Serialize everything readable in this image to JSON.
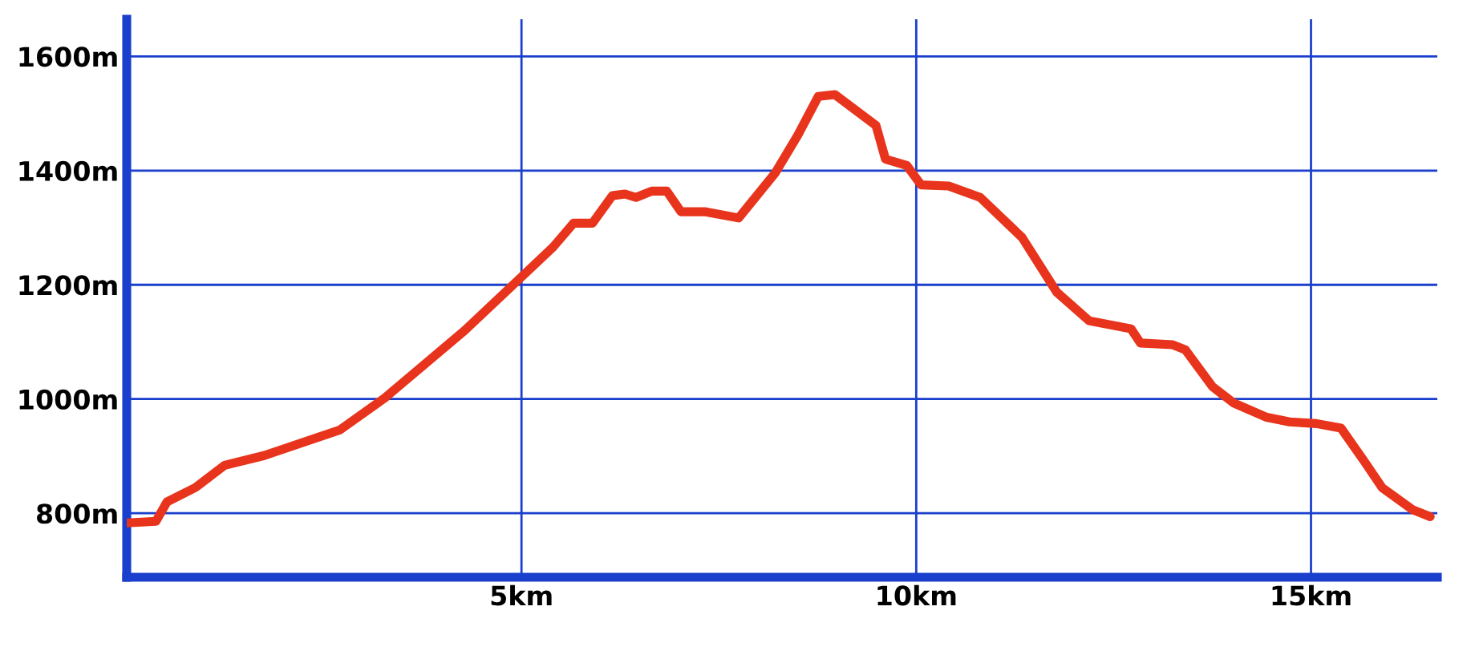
{
  "chart_data": {
    "type": "line",
    "x": [
      0,
      0.37,
      0.51,
      0.87,
      1.24,
      1.74,
      2.7,
      3.27,
      4.28,
      5.01,
      5.4,
      5.66,
      5.9,
      6.15,
      6.31,
      6.45,
      6.65,
      6.84,
      7.02,
      7.32,
      7.75,
      8.21,
      8.5,
      8.76,
      8.97,
      9.49,
      9.61,
      9.88,
      10.06,
      10.41,
      10.81,
      11.34,
      11.78,
      12.19,
      12.72,
      12.84,
      13.25,
      13.41,
      13.75,
      14.02,
      14.44,
      14.73,
      15.07,
      15.38,
      15.68,
      15.9,
      16.29,
      16.51
    ],
    "series": [
      {
        "color": "#e8341c",
        "values": [
          783,
          786,
          820,
          845,
          884,
          901,
          946,
          1002,
          1120,
          1215,
          1266,
          1308,
          1308,
          1356,
          1359,
          1353,
          1364,
          1364,
          1328,
          1328,
          1317,
          1395,
          1462,
          1530,
          1533,
          1479,
          1420,
          1409,
          1375,
          1373,
          1353,
          1283,
          1187,
          1137,
          1123,
          1098,
          1095,
          1086,
          1022,
          993,
          968,
          960,
          957,
          949,
          890,
          845,
          806,
          794
        ]
      }
    ],
    "xlim": [
      0,
      16.6
    ],
    "ylim": [
      688,
      1665
    ],
    "xticks": [
      {
        "value": 5,
        "label": "5km"
      },
      {
        "value": 10,
        "label": "10km"
      },
      {
        "value": 15,
        "label": "15km"
      }
    ],
    "yticks": [
      {
        "value": 800,
        "label": "800m"
      },
      {
        "value": 1000,
        "label": "1000m"
      },
      {
        "value": 1200,
        "label": "1200m"
      },
      {
        "value": 1400,
        "label": "1400m"
      },
      {
        "value": 1600,
        "label": "1600m"
      }
    ],
    "grid": true,
    "marker": "none",
    "line_style": "solid"
  }
}
